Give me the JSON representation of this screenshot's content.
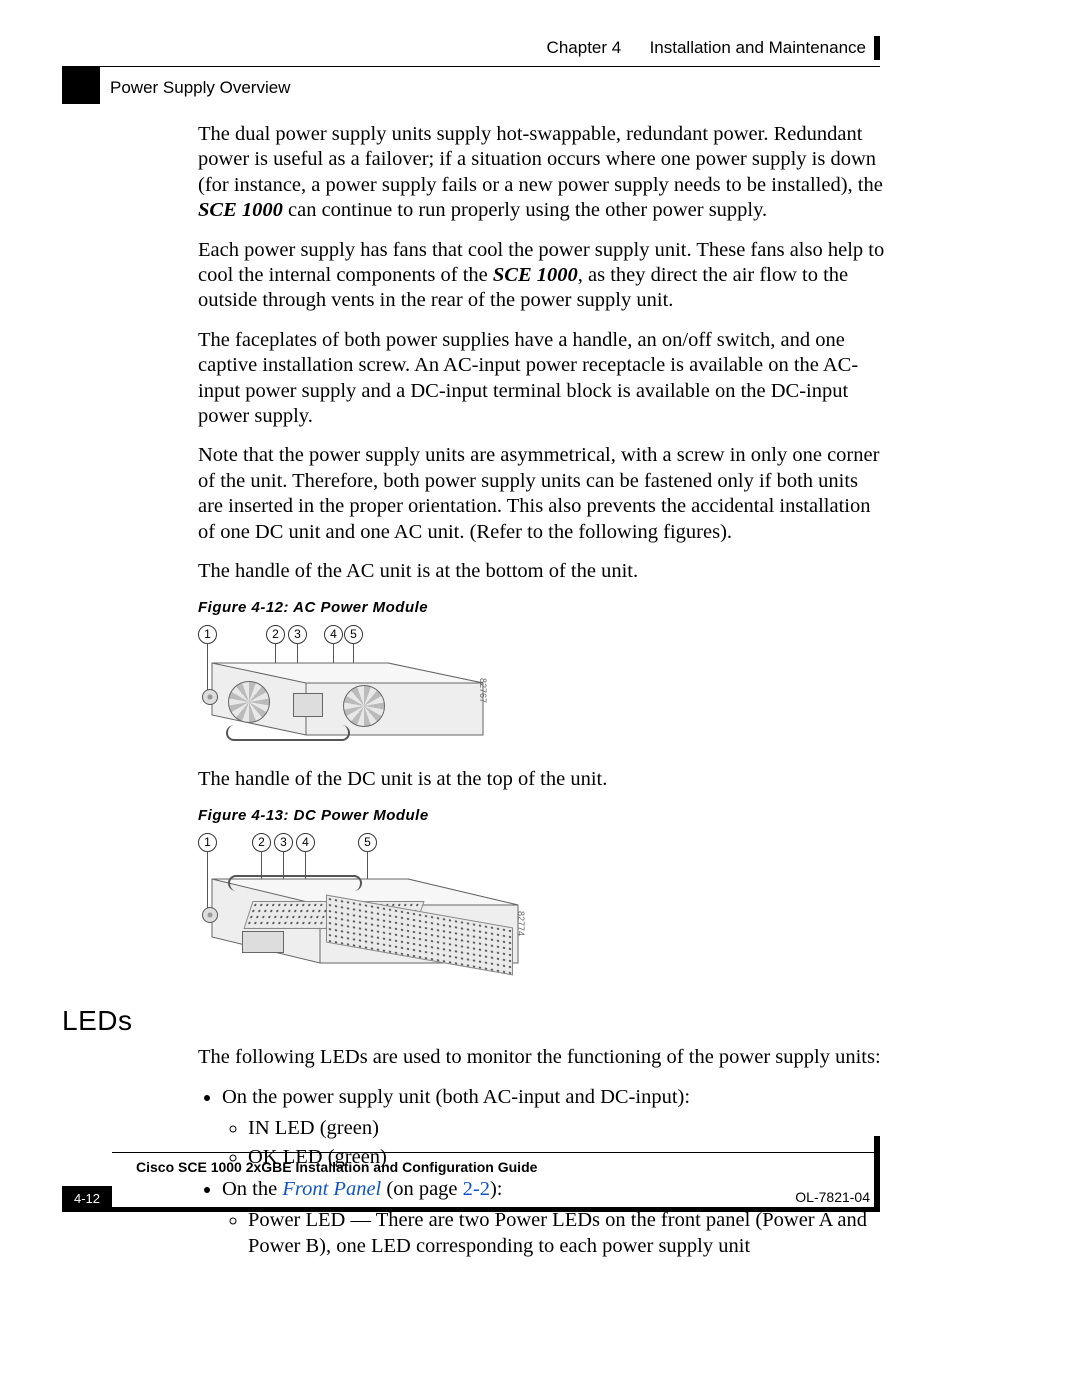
{
  "header": {
    "chapter_label": "Chapter 4",
    "chapter_title": "Installation and Maintenance",
    "section": "Power Supply Overview"
  },
  "paragraphs": {
    "p1a": "The dual power supply units supply hot-swappable, redundant power. Redundant power is useful as a failover; if a situation occurs where one power supply is down (for instance, a power supply fails or a new power supply needs to be installed), the ",
    "p1_product": "SCE 1000",
    "p1b": " can continue to run properly using the other power supply.",
    "p2a": "Each power supply has fans that cool the power supply unit. These fans also help to cool the internal components of the ",
    "p2_product": "SCE 1000",
    "p2b": ", as they direct the air flow to the outside through vents in the rear of the power supply unit.",
    "p3": "The faceplates of both power supplies have a handle, an on/off switch, and one captive installation screw. An AC-input power receptacle is available on the AC-input power supply and a DC-input terminal block is available on the DC-input power supply.",
    "p4": "Note that the power supply units are asymmetrical, with a screw in only one corner of the unit. Therefore, both power supply units can be fastened only if both units are inserted in the proper orientation. This also prevents the accidental installation of one DC unit and one AC unit. (Refer to the following figures).",
    "p5": "The handle of the AC unit is at the bottom of the unit.",
    "p6": "The handle of the DC unit is at the top of the unit."
  },
  "figures": {
    "fig12_caption": "Figure 4-12: AC Power Module",
    "fig12_imgnum": "82767",
    "fig13_caption": "Figure 4-13: DC Power Module",
    "fig13_imgnum": "82774",
    "callouts": [
      "1",
      "2",
      "3",
      "4",
      "5"
    ]
  },
  "leds": {
    "heading": "LEDs",
    "intro": "The following LEDs are used to monitor the functioning of the power supply units:",
    "item1": "On the power supply unit (both AC-input and DC-input):",
    "item1a": "IN LED (green)",
    "item1b": "OK LED (green)",
    "item2_pre": "On the ",
    "item2_link": "Front Panel",
    "item2_mid": " (on page ",
    "item2_page": "2-2",
    "item2_post": "):",
    "item2a": "Power LED — There are two Power LEDs on the front panel (Power A and Power B), one LED corresponding to each power supply unit"
  },
  "footer": {
    "guide_title": "Cisco SCE 1000 2xGBE Installation and Configuration Guide",
    "page_number": "4-12",
    "doc_number": "OL-7821-04"
  }
}
